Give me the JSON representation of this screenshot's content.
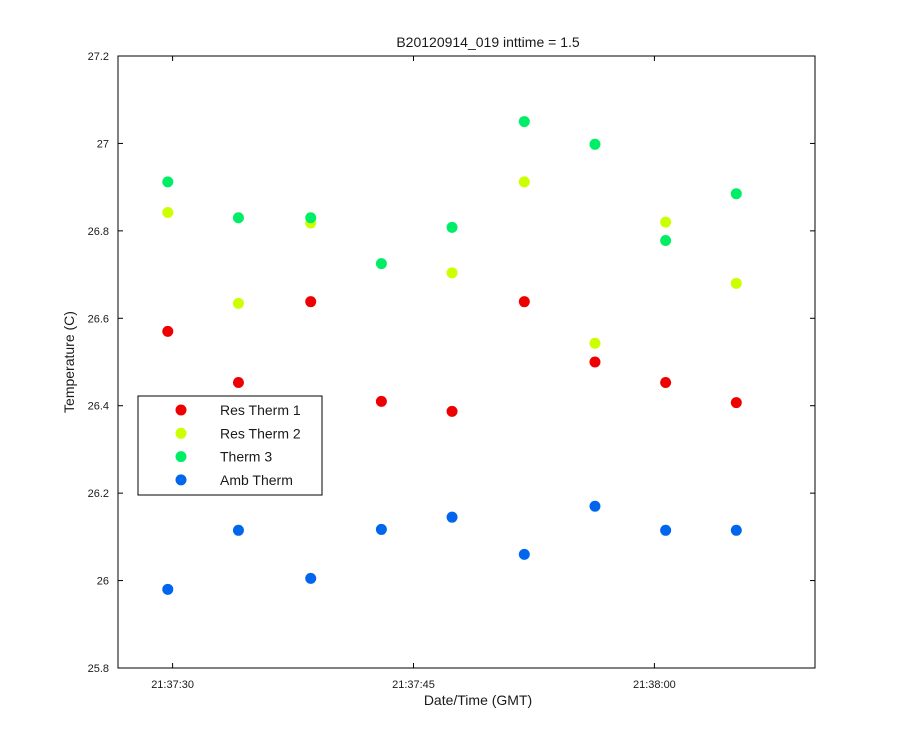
{
  "chart_data": {
    "type": "scatter",
    "title": "B20120914_019 inttime = 1.5",
    "xlabel": "Date/Time (GMT)",
    "ylabel": "Temperature (C)",
    "x_unit": "time of day",
    "xlim": [
      "21:37:26.6",
      "21:38:10"
    ],
    "ylim": [
      25.8,
      27.2
    ],
    "yticks": [
      25.8,
      26,
      26.2,
      26.4,
      26.6,
      26.8,
      27,
      27.2
    ],
    "ytick_labels": [
      "25.8",
      "26",
      "26.2",
      "26.4",
      "26.6",
      "26.8",
      "27",
      "27.2"
    ],
    "xticks": [
      "21:37:30",
      "21:37:45",
      "21:38:00"
    ],
    "xtick_labels": [
      "21:37:30",
      "21:37:45",
      "21:38:00"
    ],
    "grid": false,
    "legend": "left-middle",
    "x": [
      "21:37:29.7",
      "21:37:34.1",
      "21:37:38.6",
      "21:37:43.0",
      "21:37:47.4",
      "21:37:51.9",
      "21:37:56.3",
      "21:38:00.7",
      "21:38:05.1"
    ],
    "series": [
      {
        "name": "Res Therm 1",
        "color": "#ee0000",
        "values": [
          26.57,
          26.453,
          26.638,
          26.41,
          26.387,
          26.638,
          26.5,
          26.453,
          26.407
        ]
      },
      {
        "name": "Res Therm 2",
        "color": "#ccff00",
        "values": [
          26.842,
          26.634,
          26.818,
          null,
          26.704,
          26.912,
          26.543,
          26.82,
          26.68
        ]
      },
      {
        "name": "Therm 3",
        "color": "#00ee66",
        "values": [
          26.912,
          26.83,
          26.83,
          26.725,
          26.808,
          27.05,
          26.998,
          26.778,
          26.885
        ]
      },
      {
        "name": "Amb Therm",
        "color": "#0066ee",
        "values": [
          25.98,
          26.115,
          26.005,
          26.117,
          26.145,
          26.06,
          26.17,
          26.115,
          26.115
        ]
      }
    ]
  }
}
